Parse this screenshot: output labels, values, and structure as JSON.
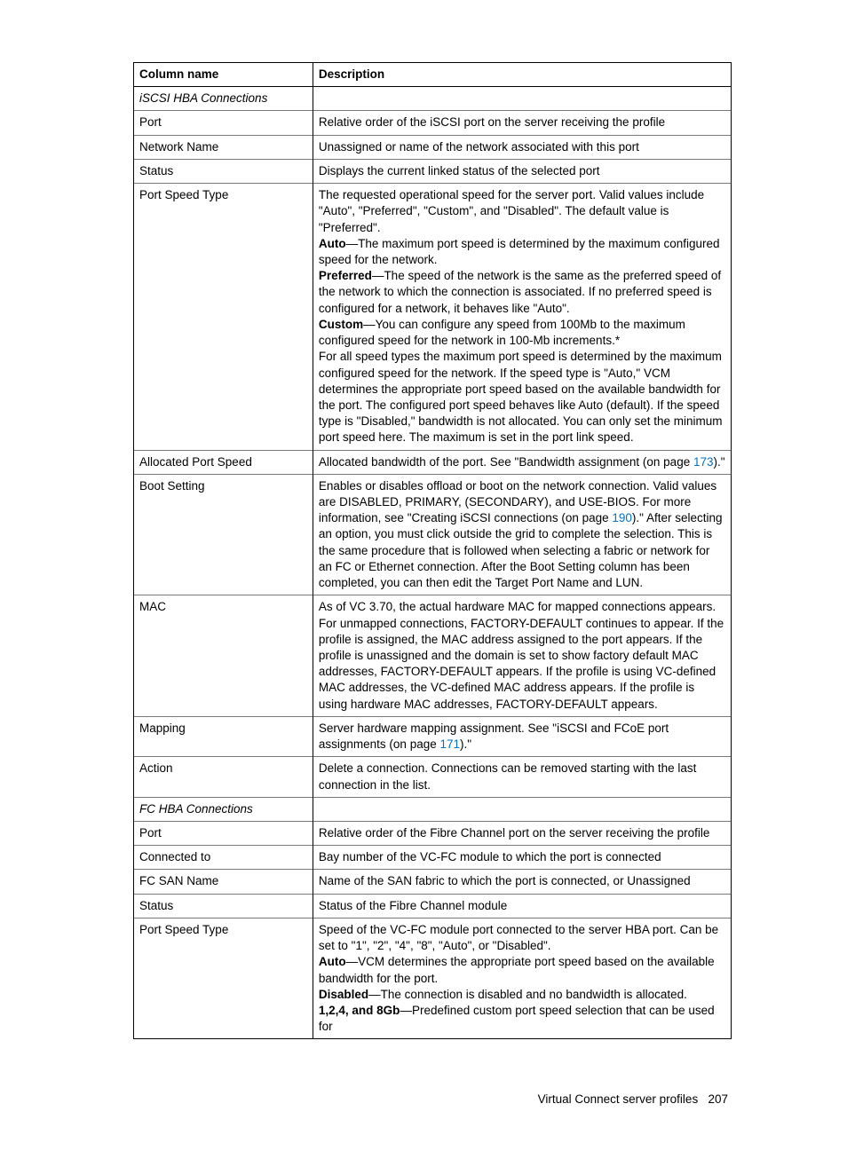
{
  "table": {
    "headers": {
      "col1": "Column name",
      "col2": "Description"
    },
    "rows": [
      {
        "name": "iSCSI HBA Connections",
        "nameItalic": true,
        "desc": ""
      },
      {
        "name": "Port",
        "desc": "Relative order of the iSCSI port on the server receiving the profile"
      },
      {
        "name": "Network Name",
        "desc": "Unassigned or name of the network associated with this port"
      },
      {
        "name": "Status",
        "desc": "Displays the current linked status of the selected port"
      },
      {
        "name": "Port Speed Type",
        "segments": [
          {
            "text": "The requested operational speed for the server port. Valid values include \"Auto\", \"Preferred\", \"Custom\", and \"Disabled\". The default value is \"Preferred\"."
          },
          {
            "br": true
          },
          {
            "text": "Auto",
            "bold": true
          },
          {
            "text": "—The maximum port speed is determined by the maximum configured speed for the network."
          },
          {
            "br": true
          },
          {
            "text": "Preferred",
            "bold": true
          },
          {
            "text": "—The speed of the network is the same as the preferred speed of the network to which the connection is associated. If no preferred speed is configured for a network, it behaves like \"Auto\"."
          },
          {
            "br": true
          },
          {
            "text": "Custom",
            "bold": true
          },
          {
            "text": "—You can configure any speed from 100Mb to the maximum configured speed for the network in 100-Mb increments.*"
          },
          {
            "br": true
          },
          {
            "text": "For all speed types the maximum port speed is determined by the maximum configured speed for the network. If the speed type is \"Auto,\" VCM determines the appropriate port speed based on the available bandwidth for the port. The configured port speed behaves like Auto (default). If the speed type is \"Disabled,\" bandwidth is not allocated. You can only set the minimum port speed here. The maximum is set in the port link speed."
          }
        ]
      },
      {
        "name": "Allocated Port Speed",
        "segments": [
          {
            "text": "Allocated bandwidth of the port. See \"Bandwidth assignment (on page "
          },
          {
            "text": "173",
            "link": true
          },
          {
            "text": ").\""
          }
        ]
      },
      {
        "name": "Boot Setting",
        "segments": [
          {
            "text": "Enables or disables offload or boot on the network connection. Valid values are DISABLED, PRIMARY, (SECONDARY), and USE-BIOS. For more information, see \"Creating iSCSI connections (on page "
          },
          {
            "text": "190",
            "link": true
          },
          {
            "text": ").\" After selecting an option, you must click outside the grid to complete the selection. This is the same procedure that is followed when selecting a fabric or network for an FC or Ethernet connection. After the Boot Setting column has been completed, you can then edit the Target Port Name and LUN."
          }
        ]
      },
      {
        "name": "MAC",
        "desc": "As of VC 3.70, the actual hardware MAC for mapped connections appears. For unmapped connections, FACTORY-DEFAULT continues to appear. If the profile is assigned, the MAC address assigned to the port appears. If the profile is unassigned and the domain is set to show factory default MAC addresses, FACTORY-DEFAULT appears. If the profile is using VC-defined MAC addresses, the VC-defined MAC address appears. If the profile is using hardware MAC addresses, FACTORY-DEFAULT appears."
      },
      {
        "name": "Mapping",
        "segments": [
          {
            "text": "Server hardware mapping assignment. See \"iSCSI and FCoE port assignments (on page "
          },
          {
            "text": "171",
            "link": true
          },
          {
            "text": ").\""
          }
        ]
      },
      {
        "name": "Action",
        "desc": "Delete a connection. Connections can be removed starting with the last connection in the list."
      },
      {
        "name": "FC HBA Connections",
        "nameItalic": true,
        "desc": ""
      },
      {
        "name": "Port",
        "desc": "Relative order of the Fibre Channel port on the server receiving the profile"
      },
      {
        "name": "Connected to",
        "desc": "Bay number of the VC-FC module to which the port is connected"
      },
      {
        "name": "FC SAN Name",
        "desc": "Name of the SAN fabric to which the port is connected, or Unassigned"
      },
      {
        "name": "Status",
        "desc": "Status of the Fibre Channel module"
      },
      {
        "name": "Port Speed Type",
        "segments": [
          {
            "text": "Speed of the VC-FC module port connected to the server HBA port. Can be set to \"1\", \"2\", \"4\", \"8\", \"Auto\", or \"Disabled\"."
          },
          {
            "br": true
          },
          {
            "text": "Auto",
            "bold": true
          },
          {
            "text": "—VCM determines the appropriate port speed based on the available bandwidth for the port."
          },
          {
            "br": true
          },
          {
            "text": "Disabled",
            "bold": true
          },
          {
            "text": "—The connection is disabled and no bandwidth is allocated."
          },
          {
            "br": true
          },
          {
            "text": "1,2,4, and 8Gb",
            "bold": true
          },
          {
            "text": "—Predefined custom port speed selection that can be used for"
          }
        ]
      }
    ]
  },
  "footer": {
    "section": "Virtual Connect server profiles",
    "page": "207"
  }
}
